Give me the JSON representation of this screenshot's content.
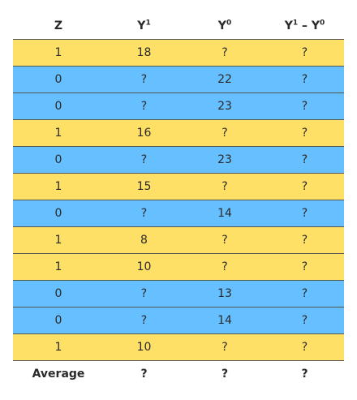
{
  "header": {
    "z": "Z",
    "y1": "Y",
    "y1_sup": "1",
    "y0": "Y",
    "y0_sup": "0",
    "diff_a": "Y",
    "diff_a_sup": "1",
    "diff_sep": " – ",
    "diff_b": "Y",
    "diff_b_sup": "0"
  },
  "colors": {
    "treated": "#ffe066",
    "control": "#66bfff"
  },
  "rows": [
    {
      "z": "1",
      "y1": "18",
      "y0": "?",
      "diff": "?"
    },
    {
      "z": "0",
      "y1": "?",
      "y0": "22",
      "diff": "?"
    },
    {
      "z": "0",
      "y1": "?",
      "y0": "23",
      "diff": "?"
    },
    {
      "z": "1",
      "y1": "16",
      "y0": "?",
      "diff": "?"
    },
    {
      "z": "0",
      "y1": "?",
      "y0": "23",
      "diff": "?"
    },
    {
      "z": "1",
      "y1": "15",
      "y0": "?",
      "diff": "?"
    },
    {
      "z": "0",
      "y1": "?",
      "y0": "14",
      "diff": "?"
    },
    {
      "z": "1",
      "y1": "8",
      "y0": "?",
      "diff": "?"
    },
    {
      "z": "1",
      "y1": "10",
      "y0": "?",
      "diff": "?"
    },
    {
      "z": "0",
      "y1": "?",
      "y0": "13",
      "diff": "?"
    },
    {
      "z": "0",
      "y1": "?",
      "y0": "14",
      "diff": "?"
    },
    {
      "z": "1",
      "y1": "10",
      "y0": "?",
      "diff": "?"
    }
  ],
  "average": {
    "label": "Average",
    "y1": "?",
    "y0": "?",
    "diff": "?"
  }
}
